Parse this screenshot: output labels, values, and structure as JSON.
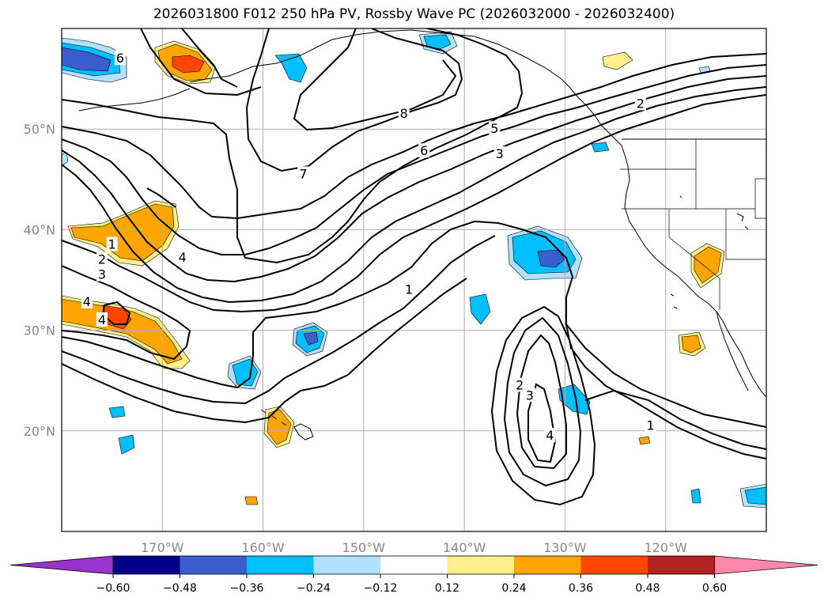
{
  "chart_data": {
    "type": "contour-map",
    "title": "2026031800 F012 250 hPa PV, Rossby Wave PC (2026032000 - 2026032400)",
    "xlim": [
      -180,
      -110
    ],
    "ylim": [
      10,
      60
    ],
    "x_ticks": [
      {
        "value": -170,
        "label": "170°W"
      },
      {
        "value": -160,
        "label": "160°W"
      },
      {
        "value": -150,
        "label": "150°W"
      },
      {
        "value": -140,
        "label": "140°W"
      },
      {
        "value": -130,
        "label": "130°W"
      },
      {
        "value": -120,
        "label": "120°W"
      }
    ],
    "y_ticks": [
      {
        "value": 20,
        "label": "20°N"
      },
      {
        "value": 30,
        "label": "30°N"
      },
      {
        "value": 40,
        "label": "40°N"
      },
      {
        "value": 50,
        "label": "50°N"
      }
    ],
    "colorbar": {
      "levels": [
        -0.6,
        -0.48,
        -0.36,
        -0.24,
        -0.12,
        0.12,
        0.24,
        0.36,
        0.48,
        0.6
      ],
      "tick_labels": [
        "−0.60",
        "−0.48",
        "−0.36",
        "−0.24",
        "−0.12",
        "0.12",
        "0.24",
        "0.36",
        "0.48",
        "0.60"
      ],
      "colors": [
        "#9933cc",
        "#00008b",
        "#3a5fcd",
        "#00bfff",
        "#b0e2ff",
        "#ffffff",
        "#fff08c",
        "#ffa500",
        "#ff4500",
        "#b22222",
        "#ff88aa"
      ]
    },
    "pv_contour_labels": [
      {
        "text": "6",
        "lon": -174.2,
        "lat": 57.0
      },
      {
        "text": "8",
        "lon": -146.0,
        "lat": 51.5
      },
      {
        "text": "7",
        "lon": -156.0,
        "lat": 45.5
      },
      {
        "text": "6",
        "lon": -144.0,
        "lat": 47.8
      },
      {
        "text": "5",
        "lon": -137.0,
        "lat": 50.0
      },
      {
        "text": "3",
        "lon": -136.5,
        "lat": 47.5
      },
      {
        "text": "2",
        "lon": -122.5,
        "lat": 52.5
      },
      {
        "text": "4",
        "lon": -168.0,
        "lat": 37.2
      },
      {
        "text": "2",
        "lon": -176.0,
        "lat": 37.0
      },
      {
        "text": "3",
        "lon": -176.0,
        "lat": 35.5
      },
      {
        "text": "4",
        "lon": -177.5,
        "lat": 32.8
      },
      {
        "text": "1",
        "lon": -175.0,
        "lat": 38.5
      },
      {
        "text": "4",
        "lon": -176.0,
        "lat": 31.0
      },
      {
        "text": "1",
        "lon": -145.5,
        "lat": 34.0
      },
      {
        "text": "2",
        "lon": -134.5,
        "lat": 24.5
      },
      {
        "text": "3",
        "lon": -133.5,
        "lat": 23.5
      },
      {
        "text": "4",
        "lon": -131.5,
        "lat": 19.5
      },
      {
        "text": "1",
        "lon": -121.5,
        "lat": 20.5
      }
    ]
  }
}
